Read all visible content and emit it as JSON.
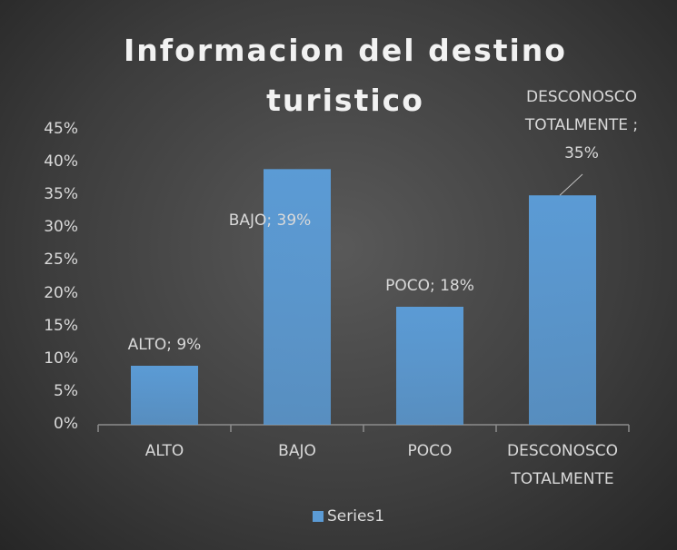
{
  "chart_data": {
    "type": "bar",
    "title": "Informacion del destino turistico",
    "categories": [
      "ALTO",
      "BAJO",
      "POCO",
      "DESCONOSCO TOTALMENTE"
    ],
    "series": [
      {
        "name": "Series1",
        "color": "#5b9bd5",
        "values": [
          9,
          39,
          18,
          35
        ]
      }
    ],
    "value_labels": [
      "ALTO; 9%",
      "BAJO; 39%",
      "POCO; 18%",
      "DESCONOSCO TOTALMENTE ; 35%"
    ],
    "ylim": [
      0,
      45
    ],
    "yticks": [
      {
        "value": 0,
        "label": "0%"
      },
      {
        "value": 5,
        "label": "5%"
      },
      {
        "value": 10,
        "label": "10%"
      },
      {
        "value": 15,
        "label": "15%"
      },
      {
        "value": 20,
        "label": "20%"
      },
      {
        "value": 25,
        "label": "25%"
      },
      {
        "value": 30,
        "label": "30%"
      },
      {
        "value": 35,
        "label": "35%"
      },
      {
        "value": 40,
        "label": "40%"
      },
      {
        "value": 45,
        "label": "45%"
      }
    ],
    "grid": false,
    "legend": "bottom"
  }
}
